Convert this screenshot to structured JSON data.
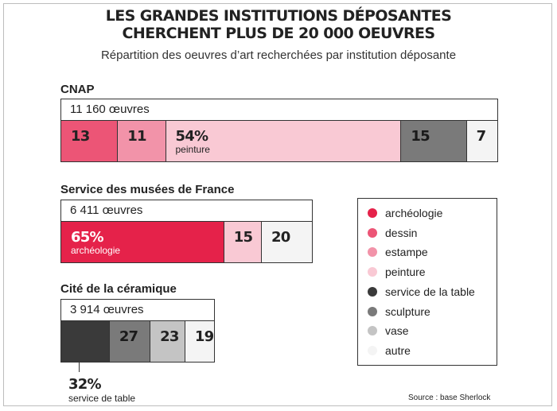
{
  "header": {
    "title_line1": "LES GRANDES INSTITUTIONS DÉPOSANTES",
    "title_line2": "CHERCHENT PLUS DE 20 000 OEUVRES",
    "subtitle": "Répartition des oeuvres d’art recherchées par institution déposante"
  },
  "source": "Source : base Sherlock",
  "colors": {
    "archéologie": "#e5224a",
    "dessin": "#ec5576",
    "estampe": "#f293a9",
    "peinture": "#f9c9d4",
    "service de la table": "#3a3a3a",
    "sculpture": "#7a7a7a",
    "vase": "#c4c4c4",
    "autre": "#f4f4f4"
  },
  "legend": [
    "archéologie",
    "dessin",
    "estampe",
    "peinture",
    "service de la table",
    "sculpture",
    "vase",
    "autre"
  ],
  "chart_data": {
    "type": "bar",
    "stacked": true,
    "orientation": "horizontal",
    "unit": "%",
    "title": "LES GRANDES INSTITUTIONS DÉPOSANTES CHERCHENT PLUS DE 20 000 OEUVRES",
    "subtitle": "Répartition des oeuvres d’art recherchées par institution déposante",
    "legend_position": "right",
    "groups": [
      {
        "name": "CNAP",
        "count_label": "11 160 œuvres",
        "total": 11160,
        "segments": [
          {
            "category": "dessin",
            "value": 13,
            "label": "13",
            "sublabel": ""
          },
          {
            "category": "estampe",
            "value": 11,
            "label": "11",
            "sublabel": ""
          },
          {
            "category": "peinture",
            "value": 54,
            "label": "54%",
            "sublabel": "peinture"
          },
          {
            "category": "sculpture",
            "value": 15,
            "label": "15",
            "sublabel": ""
          },
          {
            "category": "autre",
            "value": 7,
            "label": "7",
            "sublabel": ""
          }
        ]
      },
      {
        "name": "Service des musées de France",
        "count_label": "6 411 œuvres",
        "total": 6411,
        "segments": [
          {
            "category": "archéologie",
            "value": 65,
            "label": "65%",
            "sublabel": "archéologie"
          },
          {
            "category": "peinture",
            "value": 15,
            "label": "15",
            "sublabel": ""
          },
          {
            "category": "autre",
            "value": 20,
            "label": "20",
            "sublabel": ""
          }
        ]
      },
      {
        "name": "Cité de la céramique",
        "count_label": "3 914 œuvres",
        "total": 3914,
        "segments": [
          {
            "category": "service de la table",
            "value": 32,
            "label": "",
            "sublabel": ""
          },
          {
            "category": "sculpture",
            "value": 27,
            "label": "27",
            "sublabel": ""
          },
          {
            "category": "vase",
            "value": 23,
            "label": "23",
            "sublabel": ""
          },
          {
            "category": "autre",
            "value": 19,
            "label": "19",
            "sublabel": ""
          }
        ],
        "callout": {
          "label": "32%",
          "sublabel": "service de table"
        }
      }
    ]
  }
}
